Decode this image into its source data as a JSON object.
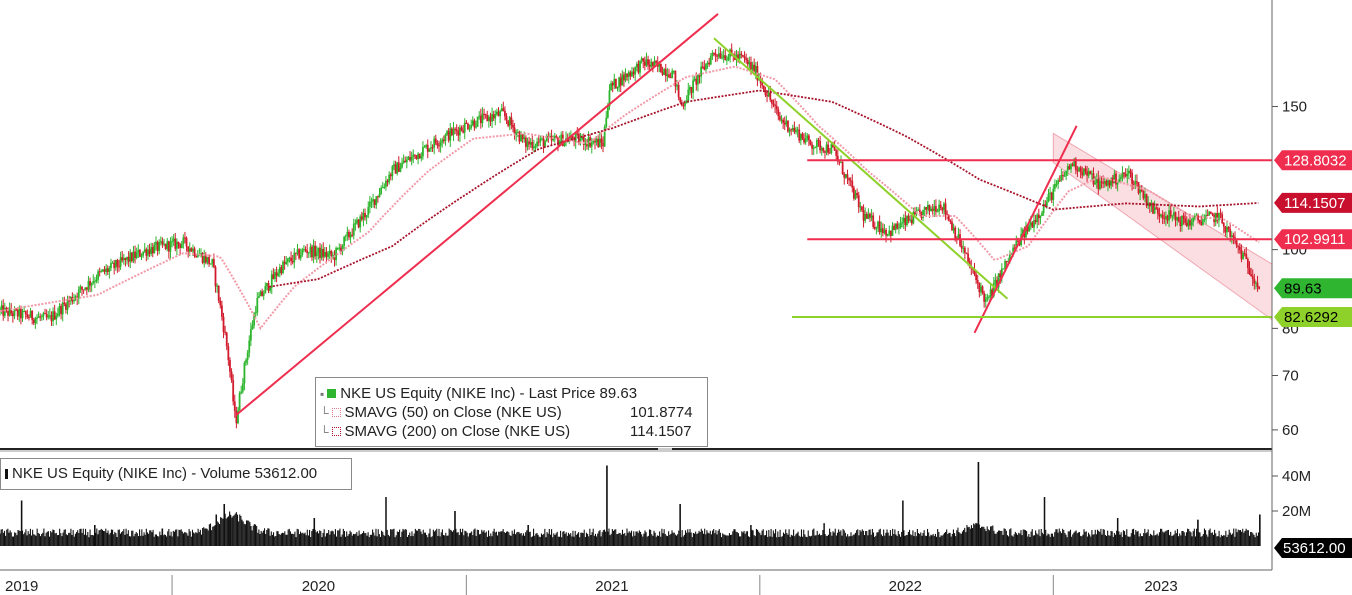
{
  "chart_data": {
    "type": "candlestick",
    "title": "",
    "price_axis": {
      "range": [
        57,
        200
      ],
      "ticks": [
        60,
        70,
        80,
        100,
        150
      ],
      "tick_labels": [
        "60",
        "70",
        "80",
        "100",
        "150"
      ]
    },
    "volume_axis": {
      "range": [
        0,
        48
      ],
      "ticks": [
        20,
        40
      ],
      "tick_labels": [
        "20M",
        "40M"
      ]
    },
    "x_axis": {
      "range": [
        "2019-06-01",
        "2023-09-30"
      ],
      "labels": [
        "2019",
        "2020",
        "2021",
        "2022",
        "2023"
      ]
    },
    "price_anchors": [
      [
        "2019-06-01",
        84
      ],
      [
        "2019-08-01",
        82
      ],
      [
        "2019-10-01",
        93
      ],
      [
        "2019-12-01",
        100
      ],
      [
        "2020-01-15",
        102
      ],
      [
        "2020-02-20",
        96
      ],
      [
        "2020-03-10",
        75
      ],
      [
        "2020-03-20",
        61
      ],
      [
        "2020-04-15",
        86
      ],
      [
        "2020-05-15",
        95
      ],
      [
        "2020-06-15",
        100
      ],
      [
        "2020-07-20",
        98
      ],
      [
        "2020-09-01",
        112
      ],
      [
        "2020-10-01",
        125
      ],
      [
        "2020-11-20",
        135
      ],
      [
        "2021-01-05",
        143
      ],
      [
        "2021-02-15",
        147
      ],
      [
        "2021-03-15",
        135
      ],
      [
        "2021-05-15",
        137
      ],
      [
        "2021-06-20",
        135
      ],
      [
        "2021-06-28",
        158
      ],
      [
        "2021-08-10",
        170
      ],
      [
        "2021-09-15",
        165
      ],
      [
        "2021-09-25",
        150
      ],
      [
        "2021-11-05",
        175
      ],
      [
        "2021-12-10",
        172
      ],
      [
        "2021-12-28",
        165
      ],
      [
        "2022-01-25",
        145
      ],
      [
        "2022-03-05",
        135
      ],
      [
        "2022-04-01",
        133
      ],
      [
        "2022-05-10",
        110
      ],
      [
        "2022-06-10",
        105
      ],
      [
        "2022-07-15",
        110
      ],
      [
        "2022-08-15",
        114
      ],
      [
        "2022-09-20",
        95
      ],
      [
        "2022-10-10",
        86
      ],
      [
        "2022-11-15",
        101
      ],
      [
        "2022-12-20",
        113
      ],
      [
        "2023-01-25",
        128
      ],
      [
        "2023-03-01",
        120
      ],
      [
        "2023-04-05",
        124
      ],
      [
        "2023-05-05",
        112
      ],
      [
        "2023-06-15",
        108
      ],
      [
        "2023-07-25",
        110
      ],
      [
        "2023-08-20",
        100
      ],
      [
        "2023-09-15",
        89.63
      ]
    ],
    "sma50_anchors": [
      [
        "2019-06-01",
        84
      ],
      [
        "2019-10-01",
        88
      ],
      [
        "2020-01-15",
        99
      ],
      [
        "2020-03-01",
        98
      ],
      [
        "2020-04-20",
        80
      ],
      [
        "2020-06-01",
        90
      ],
      [
        "2020-09-01",
        105
      ],
      [
        "2020-11-15",
        125
      ],
      [
        "2021-01-10",
        137
      ],
      [
        "2021-03-15",
        139
      ],
      [
        "2021-06-01",
        135
      ],
      [
        "2021-07-20",
        147
      ],
      [
        "2021-10-01",
        163
      ],
      [
        "2021-12-01",
        168
      ],
      [
        "2022-01-20",
        162
      ],
      [
        "2022-03-15",
        142
      ],
      [
        "2022-05-15",
        125
      ],
      [
        "2022-07-20",
        110
      ],
      [
        "2022-09-01",
        110
      ],
      [
        "2022-10-20",
        97
      ],
      [
        "2022-12-01",
        101
      ],
      [
        "2023-01-20",
        118
      ],
      [
        "2023-03-01",
        123
      ],
      [
        "2023-05-01",
        118
      ],
      [
        "2023-06-20",
        110
      ],
      [
        "2023-08-01",
        109
      ],
      [
        "2023-09-15",
        101.8774
      ]
    ],
    "sma200_anchors": [
      [
        "2020-05-01",
        90
      ],
      [
        "2020-07-01",
        92
      ],
      [
        "2020-10-01",
        101
      ],
      [
        "2021-01-01",
        117
      ],
      [
        "2021-04-01",
        133
      ],
      [
        "2021-07-01",
        141
      ],
      [
        "2021-10-01",
        152
      ],
      [
        "2022-01-01",
        157
      ],
      [
        "2022-04-01",
        152
      ],
      [
        "2022-07-01",
        138
      ],
      [
        "2022-10-01",
        122
      ],
      [
        "2023-01-01",
        112
      ],
      [
        "2023-04-01",
        114
      ],
      [
        "2023-07-01",
        113
      ],
      [
        "2023-09-15",
        114.1507
      ]
    ],
    "volume_spikes": [
      [
        "2019-06-28",
        26
      ],
      [
        "2019-09-27",
        12
      ],
      [
        "2019-12-20",
        10
      ],
      [
        "2020-02-25",
        18
      ],
      [
        "2020-03-06",
        24
      ],
      [
        "2020-03-13",
        18
      ],
      [
        "2020-06-26",
        16
      ],
      [
        "2020-09-23",
        28
      ],
      [
        "2020-12-18",
        20
      ],
      [
        "2021-03-19",
        12
      ],
      [
        "2021-06-25",
        46
      ],
      [
        "2021-09-24",
        24
      ],
      [
        "2021-12-21",
        12
      ],
      [
        "2022-03-22",
        13
      ],
      [
        "2022-06-28",
        26
      ],
      [
        "2022-09-30",
        48
      ],
      [
        "2022-12-21",
        28
      ],
      [
        "2023-03-22",
        16
      ],
      [
        "2023-06-30",
        15
      ],
      [
        "2023-09-15",
        18
      ]
    ],
    "trendlines": [
      {
        "color": "#ef2d4e",
        "points": [
          [
            "2020-03-20",
            62.5
          ],
          [
            "2021-11-10",
            195
          ]
        ]
      },
      {
        "color": "#8fd12b",
        "points": [
          [
            "2021-11-05",
            182
          ],
          [
            "2022-11-05",
            87
          ]
        ]
      },
      {
        "color": "#ef2d4e",
        "points": [
          [
            "2022-09-25",
            79
          ],
          [
            "2023-01-30",
            142
          ]
        ]
      },
      {
        "color": "#ef2d4e",
        "points": [
          [
            "2022-03-01",
            128.8032
          ],
          [
            "2023-09-30",
            128.8032
          ]
        ]
      },
      {
        "color": "#ef2d4e",
        "points": [
          [
            "2022-03-01",
            102.9911
          ],
          [
            "2023-09-30",
            102.9911
          ]
        ]
      },
      {
        "color": "#8fd12b",
        "points": [
          [
            "2022-02-10",
            82.6292
          ],
          [
            "2023-09-30",
            82.6292
          ]
        ]
      }
    ],
    "channel": {
      "color": "#f5c2c9",
      "top": [
        [
          "2023-01-01",
          139
        ],
        [
          "2023-09-30",
          96
        ]
      ],
      "bottom": [
        [
          "2023-01-01",
          128
        ],
        [
          "2023-09-30",
          82
        ]
      ]
    },
    "price_tags": [
      {
        "value": 128.8032,
        "label": "128.8032",
        "bg": "#ef2d4e",
        "fg": "#ffffff"
      },
      {
        "value": 114.1507,
        "label": "114.1507",
        "bg": "#c8102e",
        "fg": "#ffffff"
      },
      {
        "value": 102.9911,
        "label": "102.9911",
        "bg": "#ef2d4e",
        "fg": "#ffffff"
      },
      {
        "value": 89.63,
        "label": "89.63",
        "bg": "#2fb52f",
        "fg": "#000000"
      },
      {
        "value": 82.6292,
        "label": "82.6292",
        "bg": "#8fd12b",
        "fg": "#000000"
      }
    ],
    "volume_tag": {
      "label": "53612.00",
      "bg": "#000000",
      "fg": "#ffffff"
    },
    "colors": {
      "up": "#2db52d",
      "down": "#d11b2c",
      "sma50": "#f19aa8",
      "sma200": "#a8132a",
      "volume": "#111111",
      "grid": "#cfcfcf"
    },
    "grid": false
  },
  "legend": {
    "series": [
      {
        "label": "NKE US Equity (NIKE Inc) - Last Price 89.63",
        "value": "",
        "swatch_color": "#2fb52f",
        "swatch_style": "solid"
      },
      {
        "label": "SMAVG (50)  on Close (NKE US)",
        "value": "101.8774",
        "swatch_color": "#e07d8a",
        "swatch_style": "dotted"
      },
      {
        "label": "SMAVG (200)  on Close (NKE US)",
        "value": "114.1507",
        "swatch_color": "#a8132a",
        "swatch_style": "dotted"
      }
    ],
    "volume_label": "NKE US Equity (NIKE Inc) - Volume 53612.00"
  }
}
